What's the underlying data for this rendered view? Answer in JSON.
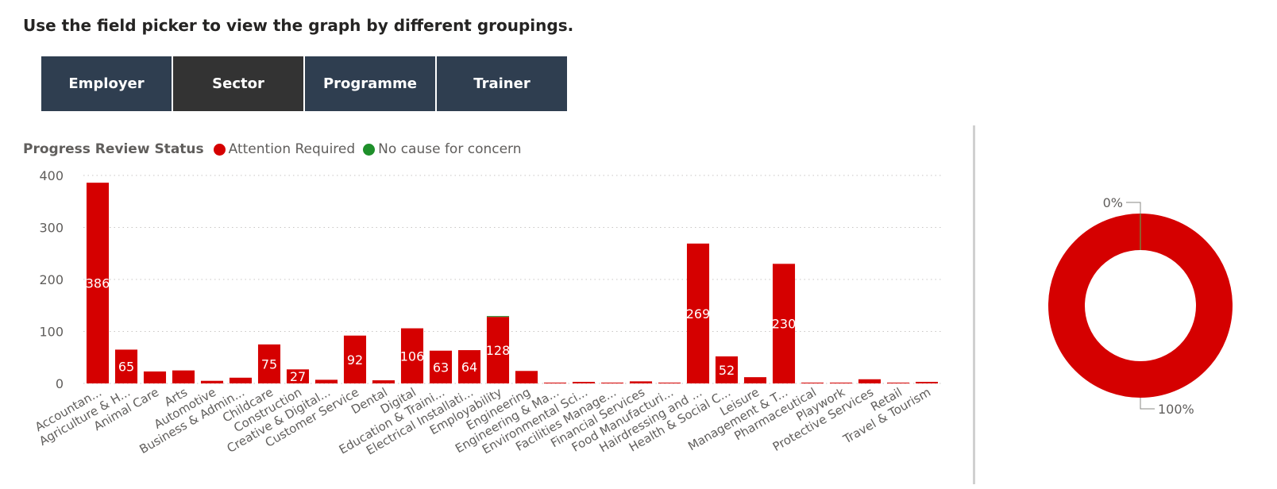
{
  "header": {
    "instruction": "Use the field picker to view the graph by different groupings."
  },
  "field_picker": {
    "buttons": [
      {
        "label": "Employer",
        "selected": false
      },
      {
        "label": "Sector",
        "selected": true
      },
      {
        "label": "Programme",
        "selected": false
      },
      {
        "label": "Trainer",
        "selected": false
      }
    ]
  },
  "legend": {
    "title": "Progress Review Status",
    "items": [
      {
        "label": "Attention Required",
        "color": "#d50000"
      },
      {
        "label": "No cause for concern",
        "color": "#1e8f2a"
      }
    ]
  },
  "chart_data": [
    {
      "type": "bar",
      "stacked": true,
      "categories": [
        "Accountan...",
        "Agriculture & H...",
        "Animal Care",
        "Arts",
        "Automotive",
        "Business & Admin...",
        "Childcare",
        "Construction",
        "Creative & Digital...",
        "Customer Service",
        "Dental",
        "Digital",
        "Education & Traini...",
        "Electrical Installati...",
        "Employability",
        "Engineering",
        "Engineering & Ma...",
        "Environmental Sci...",
        "Facilities Manage...",
        "Financial Services",
        "Food Manufacturi...",
        "Hairdressing and ...",
        "Health & Social C...",
        "Leisure",
        "Management & T...",
        "Pharmaceutical",
        "Playwork",
        "Protective Services",
        "Retail",
        "Travel & Tourism"
      ],
      "series": [
        {
          "name": "Attention Required",
          "color": "#d50000",
          "values": [
            386,
            65,
            23,
            25,
            5,
            11,
            75,
            27,
            7,
            92,
            6,
            106,
            63,
            64,
            128,
            24,
            1,
            3,
            1,
            4,
            1,
            269,
            52,
            12,
            230,
            1,
            1,
            8,
            1,
            3
          ]
        },
        {
          "name": "No cause for concern",
          "color": "#1e8f2a",
          "values": [
            0,
            0,
            0,
            0,
            0,
            0,
            0,
            0,
            0,
            0,
            0,
            0,
            0,
            0,
            1,
            0,
            0,
            0,
            0,
            0,
            0,
            0,
            0,
            0,
            0,
            0,
            0,
            0,
            0,
            0
          ]
        }
      ],
      "data_labels": [
        386,
        65,
        null,
        null,
        null,
        null,
        75,
        27,
        null,
        92,
        null,
        106,
        63,
        64,
        128,
        null,
        null,
        null,
        null,
        null,
        null,
        269,
        52,
        null,
        230,
        null,
        null,
        null,
        null,
        null
      ],
      "ylim": [
        0,
        400
      ],
      "yticks": [
        0,
        100,
        200,
        300,
        400
      ],
      "grid": true,
      "xlabel": "",
      "ylabel": ""
    },
    {
      "type": "pie",
      "donut": true,
      "labels": [
        "No cause for concern",
        "Attention Required"
      ],
      "values": [
        0,
        100
      ],
      "unit": "%",
      "slice_labels": [
        "0%",
        "100%"
      ],
      "colors": [
        "#1e8f2a",
        "#d50000"
      ]
    }
  ]
}
